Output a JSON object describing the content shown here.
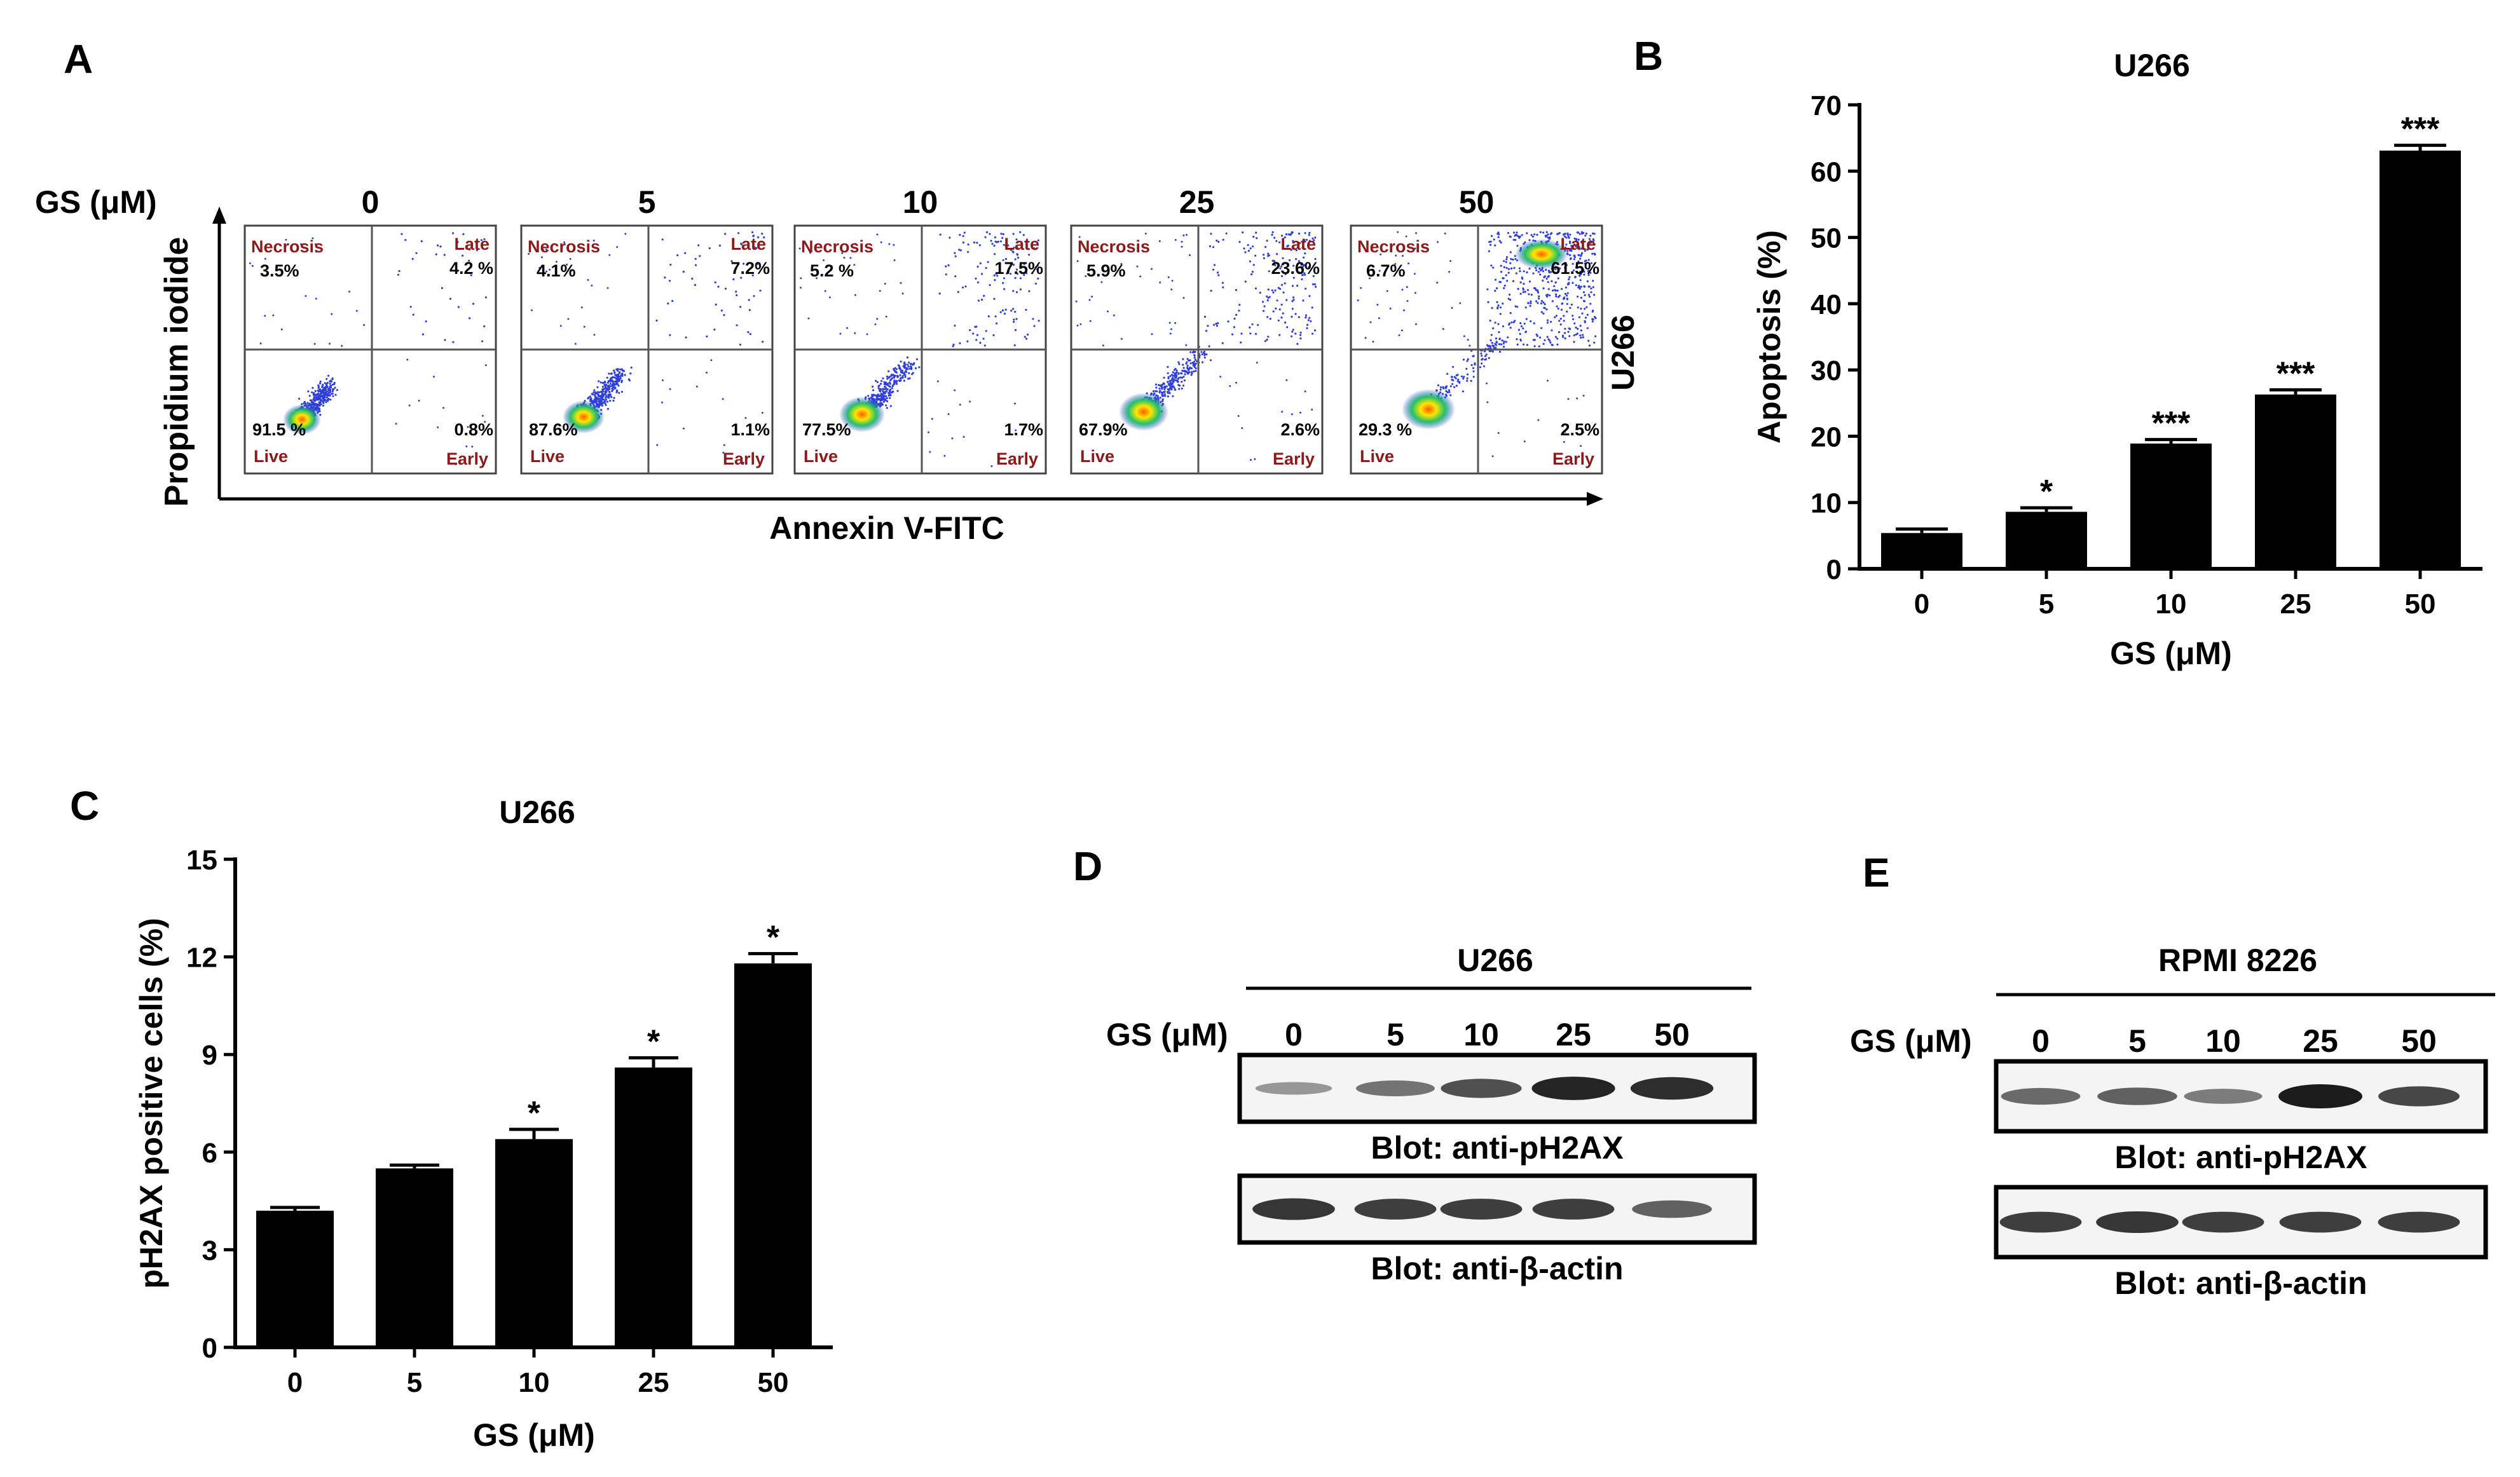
{
  "panel_letters": [
    "A",
    "B",
    "C",
    "D",
    "E"
  ],
  "panel_a": {
    "row_label": "GS (μM)",
    "concentrations": [
      "0",
      "5",
      "10",
      "25",
      "50"
    ],
    "y_axis_label": "Propidium iodide",
    "x_axis_label": "Annexin V-FITC",
    "cell_line": "U266",
    "quadrant_names": {
      "necrosis": "Necrosis",
      "late": "Late",
      "live": "Live",
      "early": "Early"
    },
    "plots": [
      {
        "necrosis": "3.5%",
        "late": "4.2 %",
        "live": "91.5 %",
        "early": "0.8%"
      },
      {
        "necrosis": "4.1%",
        "late": "7.2%",
        "live": "87.6%",
        "early": "1.1%"
      },
      {
        "necrosis": "5.2 %",
        "late": "17.5%",
        "live": "77.5%",
        "early": "1.7%"
      },
      {
        "necrosis": "5.9%",
        "late": "23.6%",
        "live": "67.9%",
        "early": "2.6%"
      },
      {
        "necrosis": "6.7%",
        "late": "61.5%",
        "live": "29.3 %",
        "early": "2.5%"
      }
    ],
    "colors": {
      "dots": "#2f3fd8",
      "quadrant_label": "#8b1a1a",
      "core_hot": "#ff7a00",
      "core_mid": "#ffee00",
      "core_cool": "#22c26b"
    }
  },
  "chart_data": [
    {
      "panel": "B",
      "type": "bar",
      "title": "U266",
      "xlabel": "GS (μM)",
      "ylabel": "Apoptosis (%)",
      "categories": [
        "0",
        "5",
        "10",
        "25",
        "50"
      ],
      "values": [
        5.4,
        8.6,
        18.9,
        26.3,
        63.1
      ],
      "errors": [
        0.6,
        0.6,
        0.6,
        0.7,
        0.8
      ],
      "significance": [
        "",
        "*",
        "***",
        "***",
        "***"
      ],
      "ylim": [
        0,
        70
      ],
      "yticks": [
        0,
        10,
        20,
        30,
        40,
        50,
        60,
        70
      ]
    },
    {
      "panel": "C",
      "type": "bar",
      "title": "U266",
      "xlabel": "GS (μM)",
      "ylabel": "pH2AX positive cells (%)",
      "categories": [
        "0",
        "5",
        "10",
        "25",
        "50"
      ],
      "values": [
        4.2,
        5.5,
        6.4,
        8.6,
        11.8
      ],
      "errors": [
        0.1,
        0.1,
        0.3,
        0.3,
        0.3
      ],
      "significance": [
        "",
        "",
        "*",
        "*",
        "*"
      ],
      "ylim": [
        0,
        15
      ],
      "yticks": [
        0,
        3,
        6,
        9,
        12,
        15
      ]
    }
  ],
  "panel_d": {
    "cell_line": "U266",
    "row_label": "GS (μM)",
    "lanes": [
      "0",
      "5",
      "10",
      "25",
      "50"
    ],
    "blots": [
      {
        "label": "Blot: anti-pH2AX",
        "intensities": [
          0.3,
          0.5,
          0.7,
          0.95,
          0.9
        ]
      },
      {
        "label": "Blot: anti-β-actin",
        "intensities": [
          0.85,
          0.8,
          0.8,
          0.8,
          0.6
        ]
      }
    ]
  },
  "panel_e": {
    "cell_line": "RPMI 8226",
    "row_label": "GS (μM)",
    "lanes": [
      "0",
      "5",
      "10",
      "25",
      "50"
    ],
    "blots": [
      {
        "label": "Blot: anti-pH2AX",
        "intensities": [
          0.55,
          0.6,
          0.45,
          1.0,
          0.75
        ]
      },
      {
        "label": "Blot: anti-β-actin",
        "intensities": [
          0.8,
          0.85,
          0.8,
          0.8,
          0.8
        ]
      }
    ]
  }
}
